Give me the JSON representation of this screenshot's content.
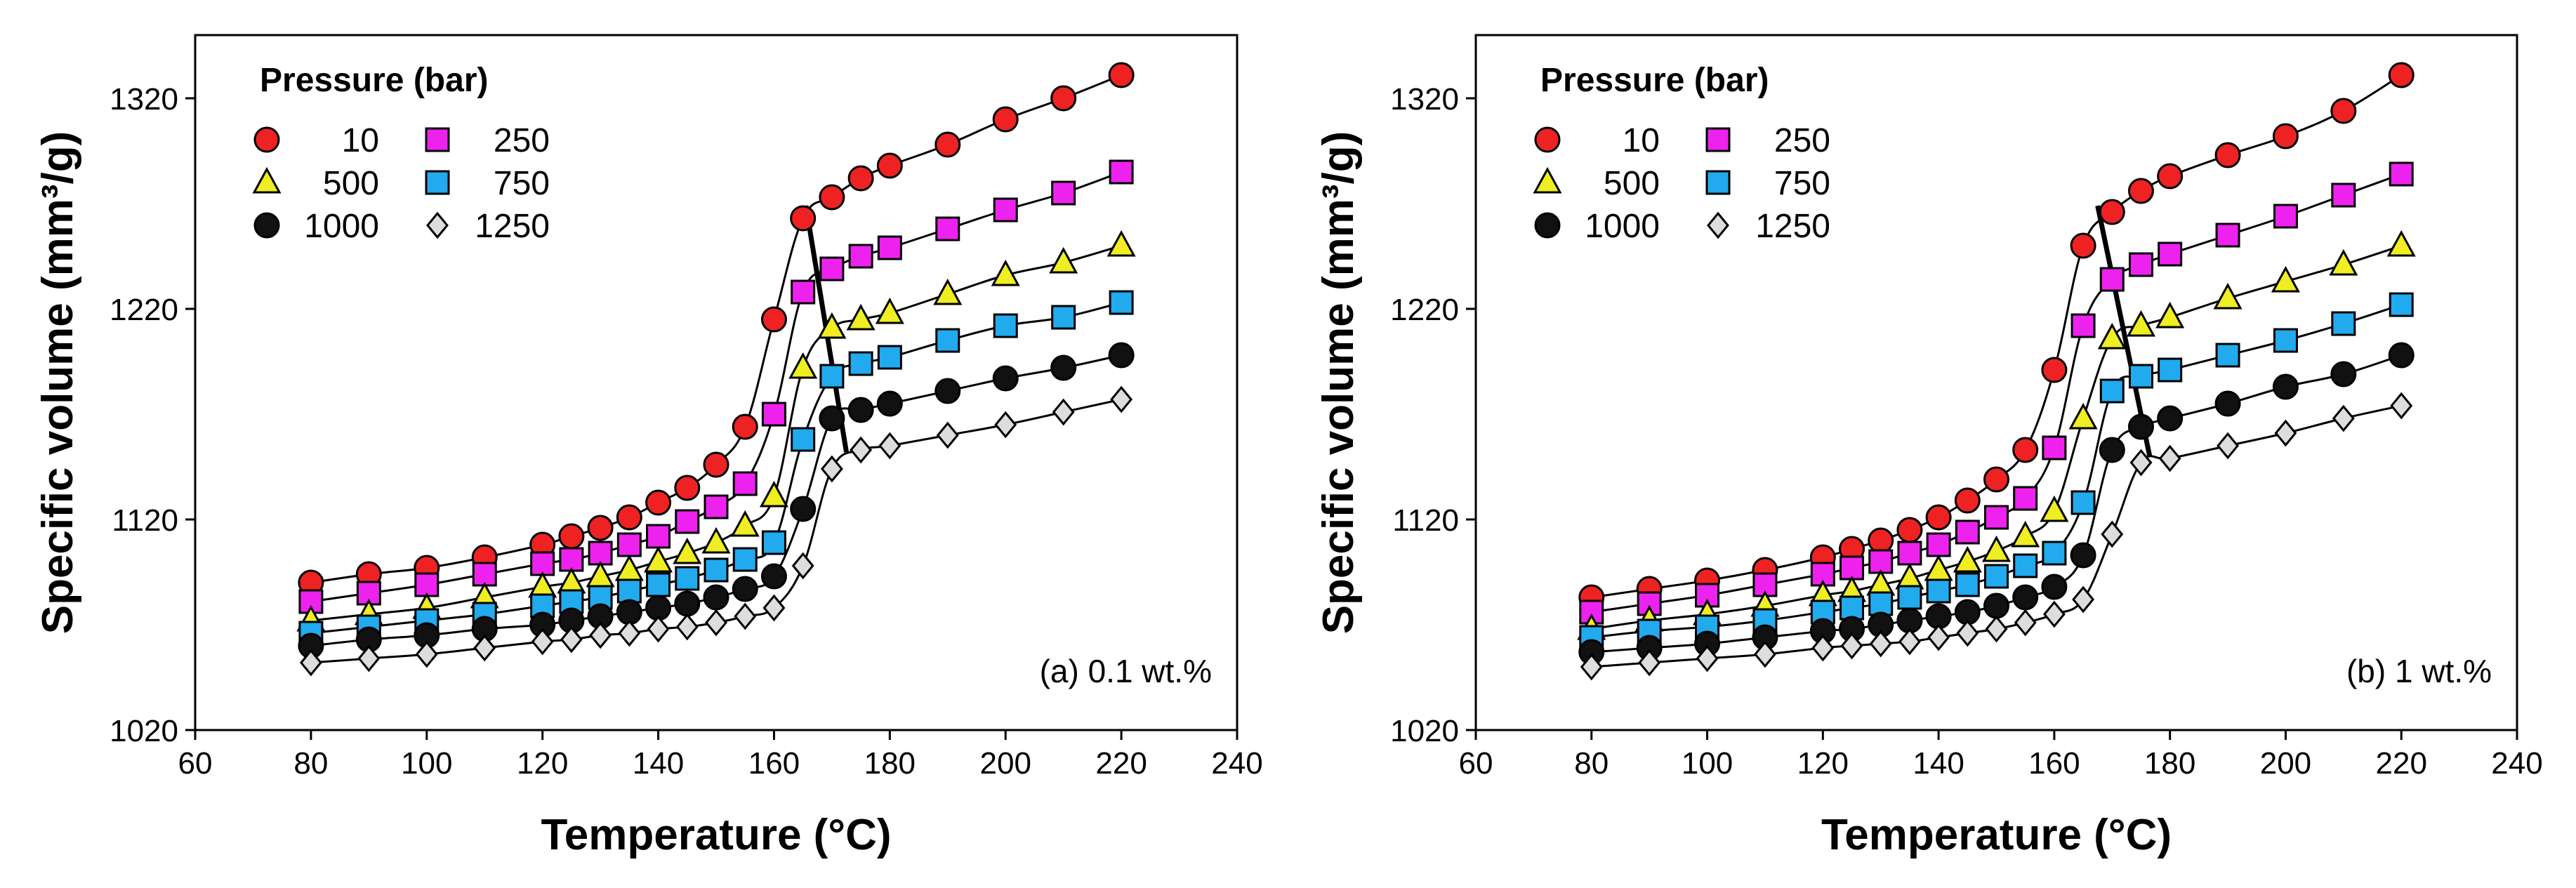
{
  "chart_data": [
    {
      "type": "scatter",
      "panel_label": "(a) 0.1 wt.%",
      "xlabel": "Temperature (°C)",
      "ylabel": "Specific volume (mm³/g)",
      "xlim": [
        60,
        240
      ],
      "ylim": [
        1020,
        1350
      ],
      "xticks": [
        "60",
        "80",
        "100",
        "120",
        "140",
        "160",
        "180",
        "200",
        "220",
        "240"
      ],
      "yticks": [
        "1020",
        "1120",
        "1220",
        "1320"
      ],
      "legend_title": "Pressure (bar)",
      "transition_line": [
        [
          165.5,
          1269
        ],
        [
          172.5,
          1152
        ]
      ],
      "series": [
        {
          "name": "10",
          "marker": "circle",
          "color": "#ee2222",
          "x": [
            80,
            90,
            100,
            110,
            120,
            125,
            130,
            135,
            140,
            145,
            150,
            155,
            160,
            165,
            170,
            175,
            180,
            190,
            200,
            210,
            220
          ],
          "y": [
            1090,
            1094,
            1097,
            1102,
            1108,
            1112,
            1116,
            1121,
            1128,
            1135,
            1146,
            1164,
            1215,
            1263,
            1273,
            1282,
            1288,
            1298,
            1310,
            1320,
            1331
          ]
        },
        {
          "name": "250",
          "marker": "square",
          "color": "#ee22ee",
          "x": [
            80,
            90,
            100,
            110,
            120,
            125,
            130,
            135,
            140,
            145,
            150,
            155,
            160,
            165,
            170,
            175,
            180,
            190,
            200,
            210,
            220
          ],
          "y": [
            1081,
            1085,
            1089,
            1094,
            1099,
            1101,
            1104,
            1108,
            1112,
            1119,
            1126,
            1137,
            1170,
            1228,
            1239,
            1245,
            1249,
            1258,
            1267,
            1275,
            1285
          ]
        },
        {
          "name": "500",
          "marker": "triangle",
          "color": "#eeee22",
          "x": [
            80,
            90,
            100,
            110,
            120,
            125,
            130,
            135,
            140,
            145,
            150,
            155,
            160,
            165,
            170,
            175,
            180,
            190,
            200,
            210,
            220
          ],
          "y": [
            1072,
            1075,
            1078,
            1083,
            1088,
            1090,
            1093,
            1096,
            1100,
            1104,
            1109,
            1117,
            1131,
            1192,
            1211,
            1215,
            1218,
            1227,
            1236,
            1242,
            1250
          ]
        },
        {
          "name": "750",
          "marker": "square",
          "color": "#22aaee",
          "x": [
            80,
            90,
            100,
            110,
            120,
            125,
            130,
            135,
            140,
            145,
            150,
            155,
            160,
            165,
            170,
            175,
            180,
            190,
            200,
            210,
            220
          ],
          "y": [
            1066,
            1069,
            1072,
            1075,
            1079,
            1081,
            1083,
            1086,
            1089,
            1092,
            1096,
            1101,
            1109,
            1158,
            1188,
            1194,
            1197,
            1205,
            1212,
            1216,
            1223
          ]
        },
        {
          "name": "1000",
          "marker": "circle",
          "color": "#111111",
          "x": [
            80,
            90,
            100,
            110,
            120,
            125,
            130,
            135,
            140,
            145,
            150,
            155,
            160,
            165,
            170,
            175,
            180,
            190,
            200,
            210,
            220
          ],
          "y": [
            1060,
            1063,
            1065,
            1068,
            1070,
            1072,
            1074,
            1076,
            1078,
            1080,
            1083,
            1087,
            1093,
            1125,
            1168,
            1172,
            1175,
            1181,
            1187,
            1192,
            1198
          ]
        },
        {
          "name": "1250",
          "marker": "diamond",
          "color": "#dddddd",
          "x": [
            80,
            90,
            100,
            110,
            120,
            125,
            130,
            135,
            140,
            145,
            150,
            155,
            160,
            165,
            170,
            175,
            180,
            190,
            200,
            210,
            220
          ],
          "y": [
            1052,
            1054,
            1056,
            1059,
            1062,
            1063,
            1065,
            1066,
            1068,
            1069,
            1071,
            1074,
            1078,
            1098,
            1144,
            1153,
            1155,
            1160,
            1165,
            1171,
            1177
          ]
        }
      ]
    },
    {
      "type": "scatter",
      "panel_label": "(b) 1 wt.%",
      "xlabel": "Temperature (°C)",
      "ylabel": "Specific volume (mm³/g)",
      "xlim": [
        60,
        240
      ],
      "ylim": [
        1020,
        1350
      ],
      "xticks": [
        "60",
        "80",
        "100",
        "120",
        "140",
        "160",
        "180",
        "200",
        "220",
        "240"
      ],
      "yticks": [
        "1020",
        "1120",
        "1220",
        "1320"
      ],
      "legend_title": "Pressure (bar)",
      "transition_line": [
        [
          167.5,
          1269
        ],
        [
          176.5,
          1150
        ]
      ],
      "series": [
        {
          "name": "10",
          "marker": "circle",
          "color": "#ee2222",
          "x": [
            80,
            90,
            100,
            110,
            120,
            125,
            130,
            135,
            140,
            145,
            150,
            155,
            160,
            165,
            170,
            175,
            180,
            190,
            200,
            210,
            220
          ],
          "y": [
            1083,
            1087,
            1091,
            1096,
            1102,
            1106,
            1110,
            1115,
            1121,
            1129,
            1139,
            1153,
            1191,
            1250,
            1266,
            1276,
            1283,
            1293,
            1302,
            1314,
            1331
          ]
        },
        {
          "name": "250",
          "marker": "square",
          "color": "#ee22ee",
          "x": [
            80,
            90,
            100,
            110,
            120,
            125,
            130,
            135,
            140,
            145,
            150,
            155,
            160,
            165,
            170,
            175,
            180,
            190,
            200,
            210,
            220
          ],
          "y": [
            1076,
            1080,
            1084,
            1089,
            1094,
            1097,
            1100,
            1104,
            1108,
            1114,
            1121,
            1130,
            1154,
            1212,
            1234,
            1241,
            1246,
            1255,
            1264,
            1274,
            1284
          ]
        },
        {
          "name": "500",
          "marker": "triangle",
          "color": "#eeee22",
          "x": [
            80,
            90,
            100,
            110,
            120,
            125,
            130,
            135,
            140,
            145,
            150,
            155,
            160,
            165,
            170,
            175,
            180,
            190,
            200,
            210,
            220
          ],
          "y": [
            1068,
            1072,
            1075,
            1079,
            1084,
            1086,
            1089,
            1092,
            1096,
            1100,
            1105,
            1112,
            1124,
            1168,
            1206,
            1212,
            1216,
            1225,
            1233,
            1241,
            1250
          ]
        },
        {
          "name": "750",
          "marker": "square",
          "color": "#22aaee",
          "x": [
            80,
            90,
            100,
            110,
            120,
            125,
            130,
            135,
            140,
            145,
            150,
            155,
            160,
            165,
            170,
            175,
            180,
            190,
            200,
            210,
            220
          ],
          "y": [
            1064,
            1067,
            1069,
            1072,
            1076,
            1078,
            1080,
            1083,
            1086,
            1089,
            1093,
            1098,
            1104,
            1128,
            1181,
            1188,
            1191,
            1198,
            1205,
            1213,
            1222
          ]
        },
        {
          "name": "1000",
          "marker": "circle",
          "color": "#111111",
          "x": [
            80,
            90,
            100,
            110,
            120,
            125,
            130,
            135,
            140,
            145,
            150,
            155,
            160,
            165,
            170,
            175,
            180,
            190,
            200,
            210,
            220
          ],
          "y": [
            1057,
            1059,
            1061,
            1064,
            1067,
            1068,
            1070,
            1072,
            1074,
            1076,
            1079,
            1083,
            1088,
            1103,
            1153,
            1164,
            1168,
            1175,
            1183,
            1189,
            1198
          ]
        },
        {
          "name": "1250",
          "marker": "diamond",
          "color": "#dddddd",
          "x": [
            80,
            90,
            100,
            110,
            120,
            125,
            130,
            135,
            140,
            145,
            150,
            155,
            160,
            165,
            170,
            175,
            180,
            190,
            200,
            210,
            220
          ],
          "y": [
            1050,
            1052,
            1054,
            1056,
            1059,
            1060,
            1061,
            1062,
            1064,
            1066,
            1068,
            1071,
            1075,
            1082,
            1113,
            1147,
            1149,
            1155,
            1161,
            1168,
            1174
          ]
        }
      ]
    }
  ]
}
